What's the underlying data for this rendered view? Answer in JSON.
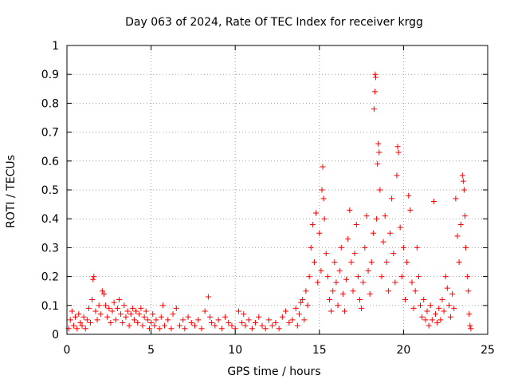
{
  "chart_data": {
    "type": "scatter",
    "title": "Day 063 of 2024, Rate Of TEC Index for receiver krgg",
    "xlabel": "GPS time / hours",
    "ylabel": "ROTI / TECUs",
    "xlim": [
      0,
      25
    ],
    "ylim": [
      0,
      1
    ],
    "xticks": [
      0,
      5,
      10,
      15,
      20,
      25
    ],
    "xtick_labels": [
      "0",
      "5",
      "10",
      "15",
      "20",
      "25"
    ],
    "yticks": [
      0,
      0.1,
      0.2,
      0.3,
      0.4,
      0.5,
      0.6,
      0.7,
      0.8,
      0.9,
      1
    ],
    "ytick_labels": [
      "0",
      "0.1",
      "0.2",
      "0.3",
      "0.4",
      "0.5",
      "0.6",
      "0.7",
      "0.8",
      "0.9",
      "1"
    ],
    "grid": true,
    "marker": "+",
    "color": "#ff0000",
    "series": [
      {
        "name": "ROTI",
        "points": [
          [
            0.1,
            0.02
          ],
          [
            0.2,
            0.05
          ],
          [
            0.3,
            0.08
          ],
          [
            0.4,
            0.03
          ],
          [
            0.5,
            0.06
          ],
          [
            0.6,
            0.02
          ],
          [
            0.7,
            0.07
          ],
          [
            0.8,
            0.04
          ],
          [
            0.9,
            0.03
          ],
          [
            1.0,
            0.06
          ],
          [
            1.1,
            0.02
          ],
          [
            1.2,
            0.05
          ],
          [
            1.3,
            0.09
          ],
          [
            1.4,
            0.04
          ],
          [
            1.5,
            0.12
          ],
          [
            1.55,
            0.19
          ],
          [
            1.6,
            0.2
          ],
          [
            1.7,
            0.08
          ],
          [
            1.8,
            0.05
          ],
          [
            1.9,
            0.1
          ],
          [
            2.0,
            0.07
          ],
          [
            2.1,
            0.15
          ],
          [
            2.2,
            0.14
          ],
          [
            2.3,
            0.1
          ],
          [
            2.4,
            0.06
          ],
          [
            2.5,
            0.09
          ],
          [
            2.6,
            0.04
          ],
          [
            2.7,
            0.08
          ],
          [
            2.8,
            0.11
          ],
          [
            2.9,
            0.05
          ],
          [
            3.0,
            0.09
          ],
          [
            3.1,
            0.12
          ],
          [
            3.2,
            0.07
          ],
          [
            3.3,
            0.04
          ],
          [
            3.4,
            0.1
          ],
          [
            3.5,
            0.06
          ],
          [
            3.6,
            0.08
          ],
          [
            3.7,
            0.03
          ],
          [
            3.8,
            0.07
          ],
          [
            3.9,
            0.09
          ],
          [
            4.0,
            0.05
          ],
          [
            4.1,
            0.08
          ],
          [
            4.2,
            0.04
          ],
          [
            4.3,
            0.07
          ],
          [
            4.4,
            0.09
          ],
          [
            4.5,
            0.03
          ],
          [
            4.6,
            0.06
          ],
          [
            4.7,
            0.08
          ],
          [
            4.8,
            0.05
          ],
          [
            4.9,
            0.02
          ],
          [
            5.0,
            0.04
          ],
          [
            5.1,
            0.07
          ],
          [
            5.2,
            0.03
          ],
          [
            5.3,
            0.05
          ],
          [
            5.5,
            0.02
          ],
          [
            5.6,
            0.06
          ],
          [
            5.7,
            0.1
          ],
          [
            5.8,
            0.03
          ],
          [
            6.0,
            0.05
          ],
          [
            6.2,
            0.02
          ],
          [
            6.3,
            0.07
          ],
          [
            6.5,
            0.09
          ],
          [
            6.7,
            0.03
          ],
          [
            6.9,
            0.05
          ],
          [
            7.0,
            0.02
          ],
          [
            7.2,
            0.06
          ],
          [
            7.4,
            0.04
          ],
          [
            7.6,
            0.03
          ],
          [
            7.8,
            0.05
          ],
          [
            8.0,
            0.02
          ],
          [
            8.2,
            0.08
          ],
          [
            8.4,
            0.13
          ],
          [
            8.5,
            0.06
          ],
          [
            8.6,
            0.04
          ],
          [
            8.8,
            0.03
          ],
          [
            9.0,
            0.05
          ],
          [
            9.2,
            0.02
          ],
          [
            9.4,
            0.06
          ],
          [
            9.6,
            0.04
          ],
          [
            9.8,
            0.03
          ],
          [
            10.0,
            0.02
          ],
          [
            10.2,
            0.08
          ],
          [
            10.4,
            0.04
          ],
          [
            10.5,
            0.07
          ],
          [
            10.6,
            0.03
          ],
          [
            10.8,
            0.05
          ],
          [
            11.0,
            0.02
          ],
          [
            11.2,
            0.04
          ],
          [
            11.4,
            0.06
          ],
          [
            11.6,
            0.03
          ],
          [
            11.8,
            0.02
          ],
          [
            12.0,
            0.05
          ],
          [
            12.2,
            0.03
          ],
          [
            12.4,
            0.04
          ],
          [
            12.6,
            0.02
          ],
          [
            12.8,
            0.06
          ],
          [
            13.0,
            0.08
          ],
          [
            13.2,
            0.04
          ],
          [
            13.4,
            0.05
          ],
          [
            13.6,
            0.09
          ],
          [
            13.7,
            0.03
          ],
          [
            13.8,
            0.07
          ],
          [
            13.9,
            0.11
          ],
          [
            14.0,
            0.12
          ],
          [
            14.1,
            0.05
          ],
          [
            14.2,
            0.15
          ],
          [
            14.3,
            0.1
          ],
          [
            14.4,
            0.2
          ],
          [
            14.5,
            0.3
          ],
          [
            14.6,
            0.38
          ],
          [
            14.7,
            0.25
          ],
          [
            14.8,
            0.42
          ],
          [
            14.9,
            0.18
          ],
          [
            15.0,
            0.35
          ],
          [
            15.1,
            0.22
          ],
          [
            15.15,
            0.5
          ],
          [
            15.2,
            0.58
          ],
          [
            15.25,
            0.47
          ],
          [
            15.3,
            0.4
          ],
          [
            15.4,
            0.28
          ],
          [
            15.5,
            0.2
          ],
          [
            15.6,
            0.12
          ],
          [
            15.7,
            0.08
          ],
          [
            15.8,
            0.15
          ],
          [
            15.9,
            0.25
          ],
          [
            16.0,
            0.18
          ],
          [
            16.1,
            0.1
          ],
          [
            16.2,
            0.22
          ],
          [
            16.3,
            0.3
          ],
          [
            16.4,
            0.14
          ],
          [
            16.5,
            0.08
          ],
          [
            16.6,
            0.19
          ],
          [
            16.7,
            0.33
          ],
          [
            16.8,
            0.43
          ],
          [
            16.9,
            0.25
          ],
          [
            17.0,
            0.15
          ],
          [
            17.1,
            0.28
          ],
          [
            17.2,
            0.38
          ],
          [
            17.3,
            0.2
          ],
          [
            17.4,
            0.12
          ],
          [
            17.5,
            0.09
          ],
          [
            17.6,
            0.18
          ],
          [
            17.7,
            0.3
          ],
          [
            17.8,
            0.41
          ],
          [
            17.9,
            0.22
          ],
          [
            18.0,
            0.14
          ],
          [
            18.1,
            0.25
          ],
          [
            18.2,
            0.35
          ],
          [
            18.25,
            0.78
          ],
          [
            18.3,
            0.84
          ],
          [
            18.32,
            0.9
          ],
          [
            18.35,
            0.89
          ],
          [
            18.4,
            0.4
          ],
          [
            18.45,
            0.59
          ],
          [
            18.5,
            0.66
          ],
          [
            18.55,
            0.63
          ],
          [
            18.6,
            0.5
          ],
          [
            18.7,
            0.2
          ],
          [
            18.8,
            0.32
          ],
          [
            18.9,
            0.41
          ],
          [
            19.0,
            0.25
          ],
          [
            19.1,
            0.15
          ],
          [
            19.2,
            0.35
          ],
          [
            19.3,
            0.47
          ],
          [
            19.4,
            0.28
          ],
          [
            19.5,
            0.18
          ],
          [
            19.6,
            0.55
          ],
          [
            19.65,
            0.65
          ],
          [
            19.7,
            0.63
          ],
          [
            19.8,
            0.37
          ],
          [
            19.9,
            0.2
          ],
          [
            20.0,
            0.3
          ],
          [
            20.1,
            0.12
          ],
          [
            20.2,
            0.25
          ],
          [
            20.3,
            0.48
          ],
          [
            20.4,
            0.43
          ],
          [
            20.5,
            0.18
          ],
          [
            20.6,
            0.09
          ],
          [
            20.7,
            0.15
          ],
          [
            20.8,
            0.3
          ],
          [
            20.9,
            0.2
          ],
          [
            21.0,
            0.1
          ],
          [
            21.1,
            0.06
          ],
          [
            21.2,
            0.12
          ],
          [
            21.3,
            0.05
          ],
          [
            21.4,
            0.08
          ],
          [
            21.5,
            0.03
          ],
          [
            21.6,
            0.1
          ],
          [
            21.7,
            0.05
          ],
          [
            21.8,
            0.46
          ],
          [
            21.9,
            0.07
          ],
          [
            22.0,
            0.04
          ],
          [
            22.1,
            0.09
          ],
          [
            22.2,
            0.05
          ],
          [
            22.3,
            0.12
          ],
          [
            22.4,
            0.08
          ],
          [
            22.5,
            0.2
          ],
          [
            22.6,
            0.16
          ],
          [
            22.7,
            0.1
          ],
          [
            22.8,
            0.06
          ],
          [
            22.9,
            0.14
          ],
          [
            23.0,
            0.09
          ],
          [
            23.1,
            0.47
          ],
          [
            23.2,
            0.34
          ],
          [
            23.3,
            0.25
          ],
          [
            23.4,
            0.38
          ],
          [
            23.5,
            0.55
          ],
          [
            23.55,
            0.53
          ],
          [
            23.6,
            0.5
          ],
          [
            23.65,
            0.41
          ],
          [
            23.7,
            0.3
          ],
          [
            23.8,
            0.2
          ],
          [
            23.85,
            0.15
          ],
          [
            23.9,
            0.07
          ],
          [
            23.95,
            0.03
          ],
          [
            24.0,
            0.02
          ]
        ]
      }
    ]
  }
}
